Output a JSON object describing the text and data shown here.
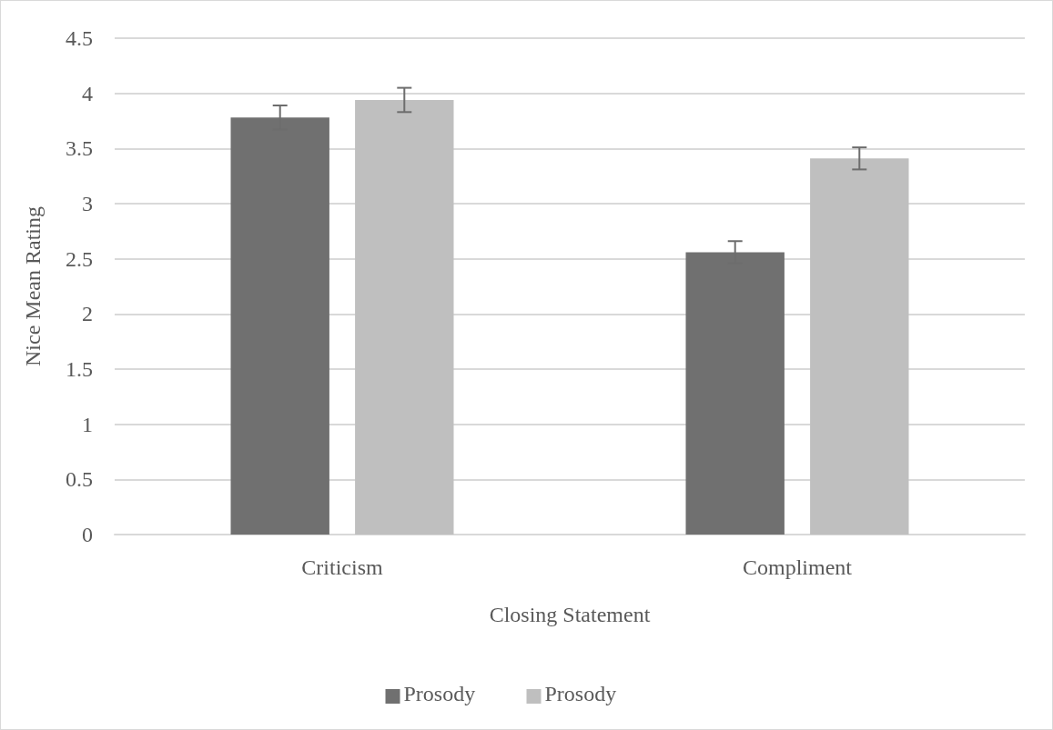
{
  "chart_data": {
    "type": "bar",
    "xlabel": "Closing Statement",
    "ylabel": "Nice Mean Rating",
    "categories": [
      "Criticism",
      "Compliment"
    ],
    "series": [
      {
        "name": "Prosody",
        "color": "#707070",
        "values": [
          3.78,
          2.56
        ],
        "errors": [
          0.11,
          0.1
        ]
      },
      {
        "name": "Prosody",
        "color": "#bfbfbf",
        "values": [
          3.94,
          3.41
        ],
        "errors": [
          0.11,
          0.1
        ]
      }
    ],
    "ylim": [
      0,
      4.5
    ],
    "yticks": [
      0,
      0.5,
      1,
      1.5,
      2,
      2.5,
      3,
      3.5,
      4,
      4.5
    ],
    "grid": "y",
    "legend": "bottom"
  }
}
